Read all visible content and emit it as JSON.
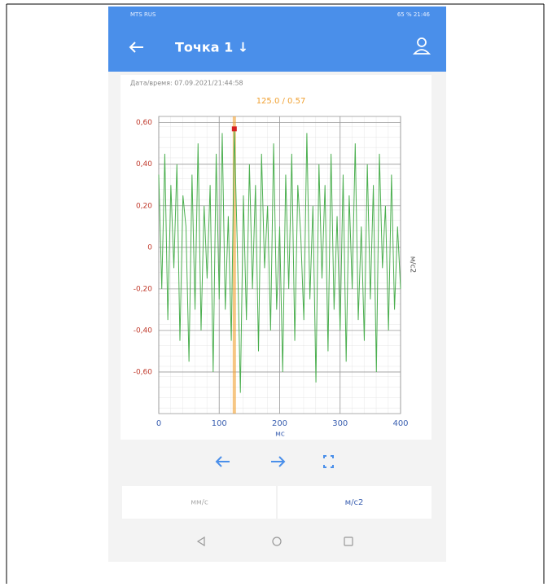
{
  "status_bar": {
    "left": "MTS RUS",
    "right": "65 % 21:46"
  },
  "app_bar": {
    "title": "Точка 1 ↓"
  },
  "chart_data": {
    "type": "line",
    "annotation": "Дата/время: 07.09.2021/21:44:58",
    "x_label": "мс",
    "y_label": "м/с2",
    "x": [
      0,
      5,
      10,
      15,
      20,
      25,
      30,
      35,
      40,
      45,
      50,
      55,
      60,
      65,
      70,
      75,
      80,
      85,
      90,
      95,
      100,
      105,
      110,
      115,
      120,
      125,
      130,
      135,
      140,
      145,
      150,
      155,
      160,
      165,
      170,
      175,
      180,
      185,
      190,
      195,
      200,
      205,
      210,
      215,
      220,
      225,
      230,
      235,
      240,
      245,
      250,
      255,
      260,
      265,
      270,
      275,
      280,
      285,
      290,
      295,
      300,
      305,
      310,
      315,
      320,
      325,
      330,
      335,
      340,
      345,
      350,
      355,
      360,
      365,
      370,
      375,
      380,
      385,
      390,
      395,
      400
    ],
    "values": [
      0.35,
      -0.2,
      0.45,
      -0.35,
      0.3,
      -0.1,
      0.4,
      -0.45,
      0.25,
      0.1,
      -0.55,
      0.35,
      -0.3,
      0.5,
      -0.4,
      0.2,
      -0.15,
      0.3,
      -0.6,
      0.45,
      -0.25,
      0.55,
      -0.3,
      0.15,
      -0.45,
      0.57,
      0.0,
      -0.7,
      0.25,
      -0.35,
      0.4,
      -0.2,
      0.3,
      -0.5,
      0.45,
      -0.1,
      0.2,
      -0.4,
      0.5,
      -0.3,
      0.1,
      -0.6,
      0.35,
      -0.2,
      0.45,
      -0.45,
      0.3,
      0.05,
      -0.35,
      0.55,
      -0.25,
      0.2,
      -0.65,
      0.4,
      -0.15,
      0.3,
      -0.5,
      0.45,
      -0.3,
      0.15,
      -0.4,
      0.35,
      -0.55,
      0.25,
      -0.2,
      0.5,
      -0.35,
      0.1,
      -0.45,
      0.4,
      -0.25,
      0.3,
      -0.6,
      0.45,
      -0.1,
      0.2,
      -0.4,
      0.35,
      -0.3,
      0.1,
      -0.2
    ],
    "color": "#4caf50",
    "xlim": [
      0,
      400
    ],
    "ylim": [
      -0.8,
      0.63
    ],
    "xticks": [
      0,
      100,
      200,
      300,
      400
    ],
    "yticks": [
      {
        "value": 0.6,
        "label": "0,60"
      },
      {
        "value": 0.4,
        "label": "0,40"
      },
      {
        "value": 0.2,
        "label": "0,20"
      },
      0,
      {
        "value": -0.2,
        "label": "-0,20"
      },
      {
        "value": -0.4,
        "label": "-0,40"
      },
      {
        "value": -0.6,
        "label": "-0,60"
      }
    ],
    "grid": true,
    "cursor": {
      "x": 125,
      "y": 0.57,
      "label": "125.0 / 0.57",
      "color": "#f0a030"
    }
  },
  "unit_tabs": [
    "мм/с",
    "м/с2"
  ]
}
